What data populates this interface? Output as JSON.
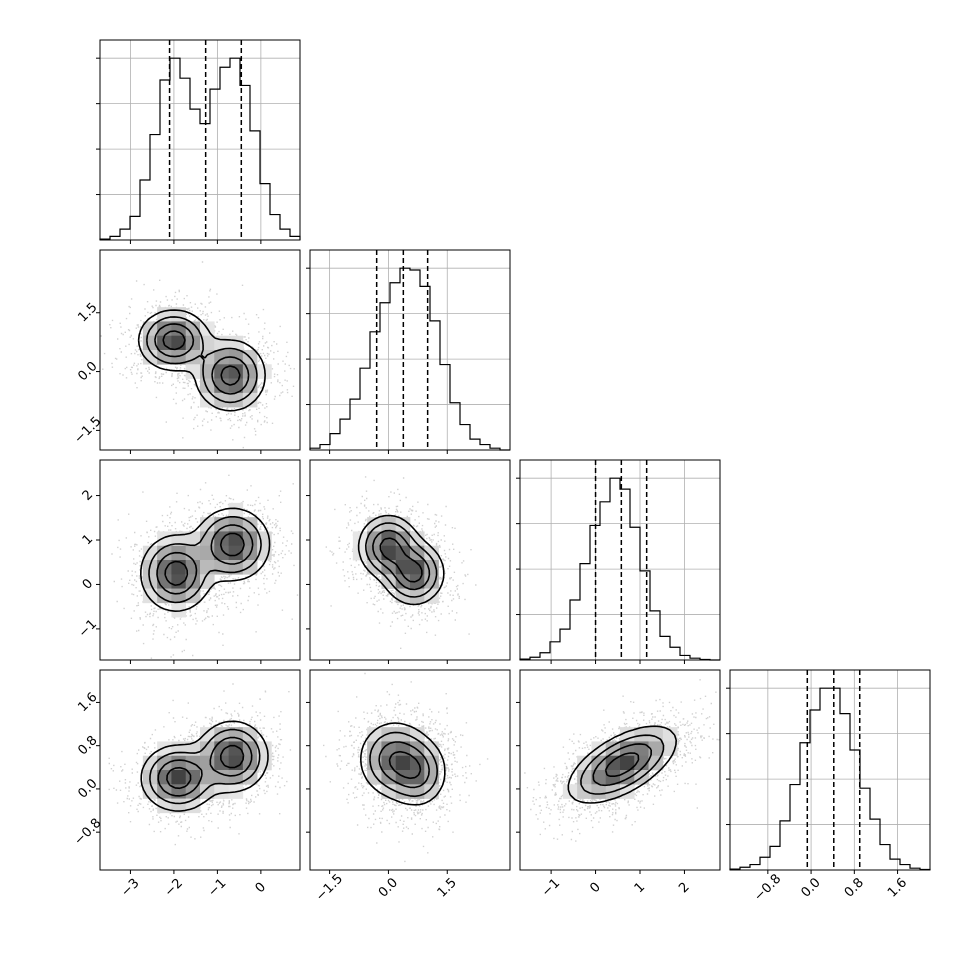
{
  "chart_data": {
    "type": "corner",
    "title": "",
    "parameters": [
      {
        "label": "",
        "range": [
          -3.7,
          0.9
        ],
        "ticks": [
          -3,
          -2,
          -1,
          0
        ],
        "tick_labels": [
          "−3",
          "−2",
          "−1",
          "0"
        ],
        "quantiles": [
          -2.1,
          -1.27,
          -0.45
        ],
        "histogram": {
          "start": -3.7,
          "bin_width": 0.23,
          "counts": [
            0.5,
            2,
            6,
            13,
            33,
            58,
            88,
            100,
            89,
            72,
            64,
            83,
            95,
            100,
            85,
            60,
            31,
            14,
            6,
            2
          ]
        }
      },
      {
        "label": "",
        "range": [
          -2.0,
          3.1
        ],
        "ticks": [
          -1.5,
          0.0,
          1.5
        ],
        "tick_labels": [
          "−1.5",
          "0.0",
          "1.5"
        ],
        "quantiles": [
          -0.3,
          0.38,
          1.0
        ],
        "histogram": {
          "start": -2.0,
          "bin_width": 0.255,
          "counts": [
            1,
            3,
            9,
            17,
            28,
            45,
            65,
            81,
            92,
            100,
            99,
            90,
            71,
            47,
            26,
            14,
            6,
            3,
            1,
            0
          ]
        }
      },
      {
        "label": "",
        "range": [
          -1.7,
          2.8
        ],
        "ticks": [
          -1,
          0,
          1,
          2
        ],
        "tick_labels": [
          "−1",
          "0",
          "1",
          "2"
        ],
        "quantiles": [
          0.0,
          0.58,
          1.15
        ],
        "histogram": {
          "start": -1.7,
          "bin_width": 0.225,
          "counts": [
            0.5,
            1.5,
            4,
            10,
            17,
            33,
            53,
            74,
            87,
            100,
            94,
            73,
            49,
            27,
            13,
            7,
            2.5,
            1,
            0.3,
            0
          ]
        }
      },
      {
        "label": "",
        "range": [
          -1.5,
          2.2
        ],
        "ticks": [
          -0.8,
          0.0,
          0.8,
          1.6
        ],
        "tick_labels": [
          "−0.8",
          "0.0",
          "0.8",
          "1.6"
        ],
        "quantiles": [
          -0.07,
          0.42,
          0.9
        ],
        "histogram": {
          "start": -1.5,
          "bin_width": 0.185,
          "counts": [
            0.5,
            1.5,
            3,
            7,
            13,
            27,
            47,
            70,
            88,
            100,
            100,
            86,
            66,
            45,
            28,
            14,
            6,
            3,
            1,
            0.3
          ]
        }
      }
    ],
    "joint": [
      {
        "x": 0,
        "y": 1,
        "modes": [
          {
            "x": -2.0,
            "y": 0.8,
            "sx": 0.4,
            "sy": 0.38,
            "rho": 0.0,
            "w": 1.0
          },
          {
            "x": -0.7,
            "y": -0.1,
            "sx": 0.4,
            "sy": 0.45,
            "rho": 0.0,
            "w": 0.95
          }
        ]
      },
      {
        "x": 0,
        "y": 2,
        "modes": [
          {
            "x": -1.95,
            "y": 0.25,
            "sx": 0.4,
            "sy": 0.42,
            "rho": 0.0,
            "w": 1.0
          },
          {
            "x": -0.65,
            "y": 0.9,
            "sx": 0.42,
            "sy": 0.4,
            "rho": 0.0,
            "w": 1.0
          }
        ]
      },
      {
        "x": 1,
        "y": 2,
        "modes": [
          {
            "x": 0.0,
            "y": 0.85,
            "sx": 0.38,
            "sy": 0.35,
            "rho": 0.0,
            "w": 1.0
          },
          {
            "x": 0.65,
            "y": 0.25,
            "sx": 0.38,
            "sy": 0.35,
            "rho": 0.0,
            "w": 1.0
          }
        ]
      },
      {
        "x": 0,
        "y": 3,
        "modes": [
          {
            "x": -1.9,
            "y": 0.2,
            "sx": 0.42,
            "sy": 0.3,
            "rho": 0.0,
            "w": 1.0
          },
          {
            "x": -0.65,
            "y": 0.6,
            "sx": 0.4,
            "sy": 0.32,
            "rho": 0.0,
            "w": 1.0
          }
        ]
      },
      {
        "x": 1,
        "y": 3,
        "modes": [
          {
            "x": 0.15,
            "y": 0.55,
            "sx": 0.45,
            "sy": 0.35,
            "rho": 0.0,
            "w": 1.0
          },
          {
            "x": 0.75,
            "y": 0.3,
            "sx": 0.38,
            "sy": 0.32,
            "rho": 0.0,
            "w": 0.8
          }
        ]
      },
      {
        "x": 2,
        "y": 3,
        "modes": [
          {
            "x": 0.6,
            "y": 0.45,
            "sx": 0.6,
            "sy": 0.35,
            "rho": 0.6,
            "w": 1.0
          }
        ]
      }
    ]
  }
}
